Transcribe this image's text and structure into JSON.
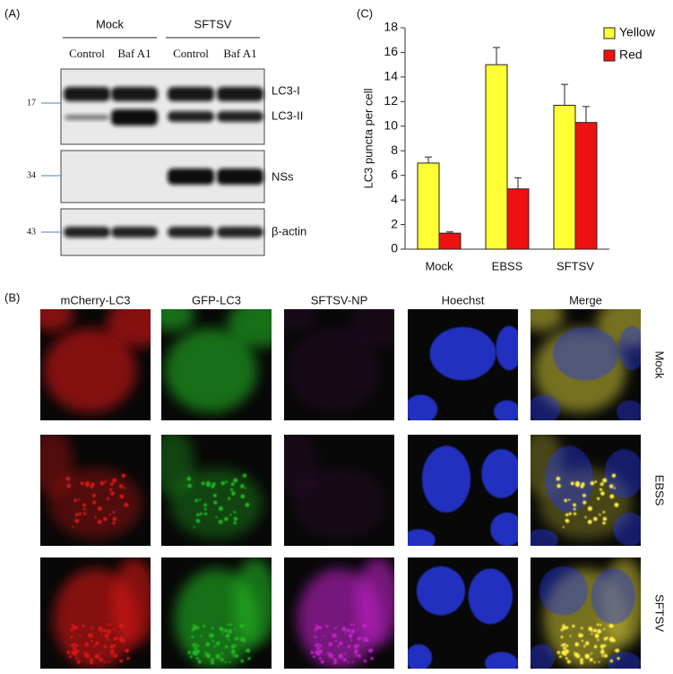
{
  "panel_a": {
    "label": "(A)",
    "groups": [
      "Mock",
      "SFTSV"
    ],
    "lanes": [
      "Control",
      "Baf A1",
      "Control",
      "Baf A1"
    ],
    "markers": [
      17,
      34,
      43
    ],
    "bands": [
      "LC3-I",
      "LC3-II",
      "NSs",
      "β-actin"
    ]
  },
  "panel_b": {
    "label": "(B)",
    "columns": [
      {
        "name": "mCherry-LC3",
        "color": "#e8201c"
      },
      {
        "name": "GFP-LC3",
        "color": "#4cc84c"
      },
      {
        "name": "SFTSV-NP",
        "color": "#a020c0"
      },
      {
        "name": "Hoechst",
        "color": "#3030c0"
      },
      {
        "name": "Merge",
        "color": "#f0b400"
      }
    ],
    "rows": [
      "Mock",
      "EBSS",
      "SFTSV"
    ]
  },
  "chart_data": {
    "type": "bar",
    "panel_label": "(C)",
    "y_label": "LC3 puncta per cell",
    "categories": [
      "Mock",
      "EBSS",
      "SFTSV"
    ],
    "series": [
      {
        "name": "Yellow",
        "color": "#ffff33",
        "values": [
          7,
          15,
          11.7
        ],
        "errors": [
          0.5,
          1.4,
          1.7
        ]
      },
      {
        "name": "Red",
        "color": "#ee1111",
        "values": [
          1.3,
          4.9,
          10.3
        ],
        "errors": [
          0.1,
          0.9,
          1.3
        ]
      }
    ],
    "ylim": [
      0,
      18
    ],
    "yticks": [
      0,
      2,
      4,
      6,
      8,
      10,
      12,
      14,
      16,
      18
    ],
    "legend": "upper right"
  }
}
